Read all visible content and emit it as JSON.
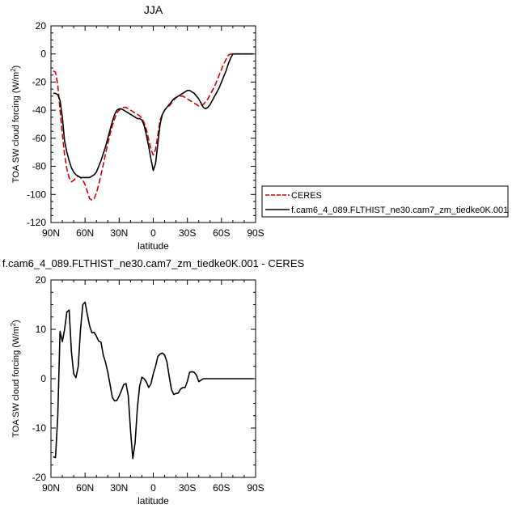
{
  "chart_data": [
    {
      "type": "line",
      "title": "JJA",
      "xlabel": "latitude",
      "ylabel": "TOA SW cloud forcing (W/m",
      "ylabel_sup": "2",
      "ylabel_close": ")",
      "xlim": [
        90,
        -90
      ],
      "ylim": [
        -120,
        20
      ],
      "xticks": [
        90,
        60,
        30,
        0,
        -30,
        -60,
        -90
      ],
      "xtick_labels": [
        "90N",
        "60N",
        "30N",
        "0",
        "30S",
        "60S",
        "90S"
      ],
      "yticks": [
        -120,
        -100,
        -80,
        -60,
        -40,
        -20,
        0,
        20
      ],
      "ytick_labels": [
        "-120",
        "-100",
        "-80",
        "-60",
        "-40",
        "-20",
        "0",
        "20"
      ],
      "legend_position": "right",
      "series": [
        {
          "name": "CERES",
          "color": "#d40000",
          "dash": "dashed",
          "x": [
            88,
            86,
            84,
            82,
            80,
            78,
            76,
            74,
            72,
            70,
            68,
            66,
            64,
            62,
            60,
            58,
            56,
            54,
            52,
            50,
            48,
            46,
            44,
            42,
            40,
            38,
            36,
            34,
            32,
            30,
            28,
            26,
            24,
            22,
            20,
            18,
            16,
            14,
            12,
            10,
            8,
            6,
            4,
            2,
            0,
            -2,
            -4,
            -6,
            -8,
            -10,
            -12,
            -14,
            -16,
            -18,
            -20,
            -22,
            -24,
            -26,
            -28,
            -30,
            -32,
            -34,
            -36,
            -38,
            -40,
            -42,
            -44,
            -46,
            -48,
            -50,
            -52,
            -54,
            -56,
            -58,
            -60,
            -62,
            -64,
            -66,
            -68,
            -70,
            -72,
            -74,
            -76,
            -78,
            -80,
            -82,
            -84,
            -86,
            -88
          ],
          "y": [
            -12,
            -13,
            -22,
            -40,
            -57,
            -72,
            -82,
            -88,
            -91,
            -90,
            -88,
            -87,
            -88,
            -90,
            -93,
            -98,
            -103,
            -104,
            -103,
            -99,
            -93,
            -86,
            -79,
            -71,
            -64,
            -57,
            -51,
            -46,
            -42,
            -40,
            -39,
            -38,
            -38,
            -39,
            -40,
            -41,
            -42,
            -43,
            -44,
            -46,
            -49,
            -54,
            -61,
            -68,
            -72,
            -68,
            -58,
            -47,
            -43,
            -40,
            -38,
            -37,
            -35,
            -33,
            -31,
            -30,
            -30,
            -30,
            -31,
            -32,
            -33,
            -34,
            -35,
            -36,
            -37,
            -37,
            -36,
            -34,
            -32,
            -29,
            -26,
            -23,
            -19,
            -15,
            -11,
            -7,
            -4,
            -1,
            0,
            0,
            0,
            0,
            0,
            0,
            0,
            0,
            0,
            0,
            0
          ]
        },
        {
          "name": "f.cam6_4_089.FLTHIST_ne30.cam7_zm_tiedke0K.001",
          "color": "#000000",
          "dash": "solid",
          "x": [
            88,
            86,
            84,
            82,
            80,
            78,
            76,
            74,
            72,
            70,
            68,
            66,
            64,
            62,
            60,
            58,
            56,
            54,
            52,
            50,
            48,
            46,
            44,
            42,
            40,
            38,
            36,
            34,
            32,
            30,
            28,
            26,
            24,
            22,
            20,
            18,
            16,
            14,
            12,
            10,
            8,
            6,
            4,
            2,
            0,
            -2,
            -4,
            -6,
            -8,
            -10,
            -12,
            -14,
            -16,
            -18,
            -20,
            -22,
            -24,
            -26,
            -28,
            -30,
            -32,
            -34,
            -36,
            -38,
            -40,
            -42,
            -44,
            -46,
            -48,
            -50,
            -52,
            -54,
            -56,
            -58,
            -60,
            -62,
            -64,
            -66,
            -68,
            -70,
            -72,
            -74,
            -76,
            -78,
            -80,
            -82,
            -84,
            -86,
            -88
          ],
          "y": [
            -28,
            -28,
            -29,
            -33,
            -45,
            -62,
            -70,
            -76,
            -81,
            -84,
            -86,
            -87,
            -88,
            -88,
            -88,
            -88,
            -88,
            -87,
            -86,
            -84,
            -80,
            -76,
            -71,
            -66,
            -60,
            -54,
            -48,
            -43,
            -40,
            -39,
            -39,
            -40,
            -41,
            -42,
            -43,
            -44,
            -45,
            -46,
            -46,
            -47,
            -51,
            -58,
            -66,
            -75,
            -83,
            -78,
            -64,
            -50,
            -43,
            -40,
            -38,
            -36,
            -34,
            -32,
            -31,
            -30,
            -29,
            -28,
            -27,
            -26,
            -26,
            -27,
            -28,
            -30,
            -32,
            -35,
            -38,
            -39,
            -38,
            -36,
            -33,
            -30,
            -27,
            -24,
            -20,
            -16,
            -12,
            -7,
            -3,
            0,
            0,
            0,
            0,
            0,
            0,
            0,
            0,
            0,
            0
          ]
        }
      ]
    },
    {
      "type": "line",
      "title": "f.cam6_4_089.FLTHIST_ne30.cam7_zm_tiedke0K.001 - CERES",
      "xlabel": "latitude",
      "ylabel": "TOA SW cloud forcing (W/m",
      "ylabel_sup": "2",
      "ylabel_close": ")",
      "xlim": [
        90,
        -90
      ],
      "ylim": [
        -20,
        20
      ],
      "xticks": [
        90,
        60,
        30,
        0,
        -30,
        -60,
        -90
      ],
      "xtick_labels": [
        "90N",
        "60N",
        "30N",
        "0",
        "30S",
        "60S",
        "90S"
      ],
      "yticks": [
        -20,
        -10,
        0,
        10,
        20
      ],
      "ytick_labels": [
        "-20",
        "-10",
        "0",
        "10",
        "20"
      ],
      "series": [
        {
          "color": "#000000",
          "dash": "solid",
          "x": [
            88,
            86,
            84,
            82,
            80,
            78,
            76,
            74,
            72,
            70,
            68,
            66,
            64,
            62,
            60,
            58,
            56,
            54,
            52,
            50,
            48,
            46,
            44,
            42,
            40,
            38,
            36,
            34,
            32,
            30,
            28,
            26,
            24,
            22,
            20,
            18,
            16,
            14,
            12,
            10,
            8,
            6,
            4,
            2,
            0,
            -2,
            -4,
            -6,
            -8,
            -10,
            -12,
            -14,
            -16,
            -18,
            -20,
            -22,
            -24,
            -26,
            -28,
            -30,
            -32,
            -34,
            -36,
            -38,
            -40,
            -42,
            -44,
            -46,
            -48,
            -50,
            -52,
            -54,
            -56,
            -58,
            -60,
            -62,
            -64,
            -66,
            -68,
            -70,
            -72,
            -74,
            -76,
            -78,
            -80,
            -82,
            -84,
            -86,
            -88
          ],
          "y": [
            -15.8,
            -16,
            -7.5,
            9.6,
            7.5,
            10,
            13.5,
            13.9,
            5.5,
            1,
            0.2,
            2.5,
            10,
            15,
            15.5,
            13,
            10.7,
            9.3,
            9.4,
            8.6,
            7.6,
            7.4,
            4.8,
            3.3,
            1.3,
            -1.2,
            -3.8,
            -4.5,
            -4.4,
            -3.5,
            -2.4,
            -1.2,
            -1,
            -3.4,
            -10.5,
            -16.2,
            -13,
            -6,
            -1.5,
            0.3,
            0,
            -0.7,
            -1.8,
            -1,
            1,
            2.5,
            4.5,
            5,
            5.2,
            4.8,
            3.4,
            0.5,
            -2.2,
            -3.2,
            -3,
            -2.9,
            -2.1,
            -1.8,
            -1.8,
            -0.5,
            1.3,
            1.4,
            1.3,
            0.7,
            -0.6,
            -0.3,
            0,
            0,
            0,
            0,
            0,
            0,
            0,
            0,
            0,
            0,
            0,
            0,
            0,
            0,
            0,
            0,
            0,
            0,
            0,
            0,
            0,
            0,
            0
          ]
        }
      ]
    }
  ]
}
